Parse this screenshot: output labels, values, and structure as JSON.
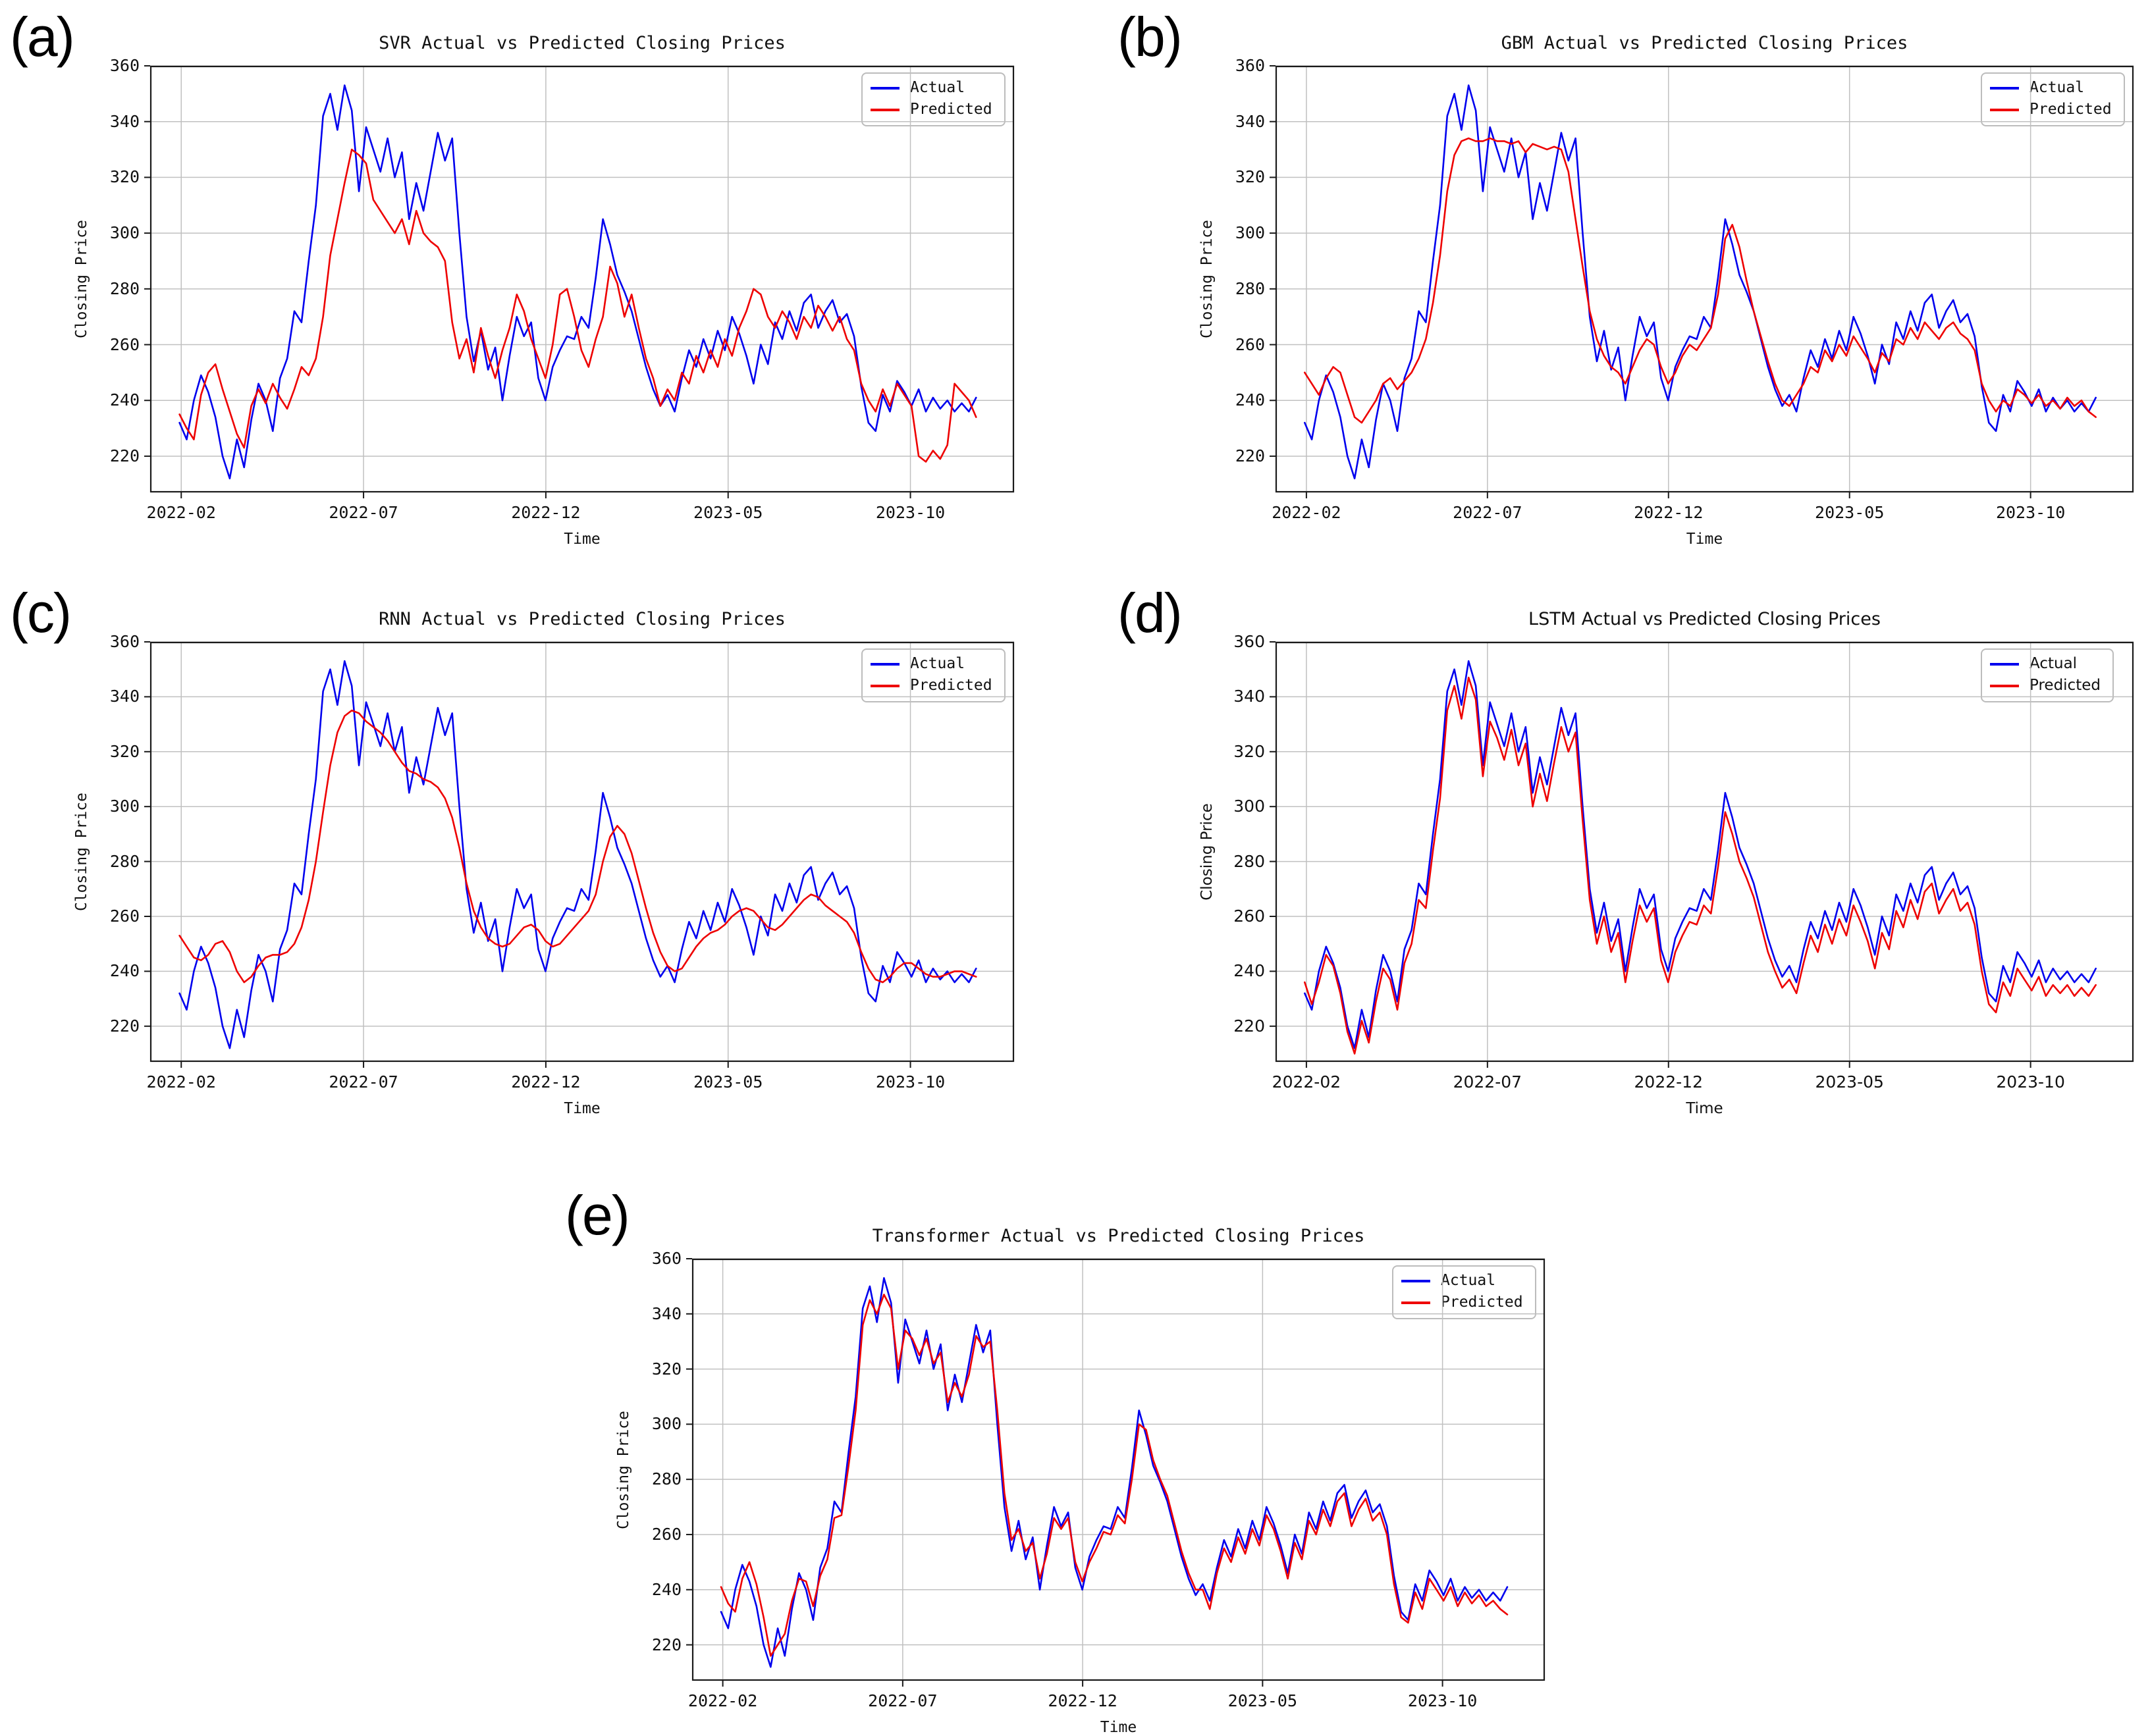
{
  "figure_note": "Actual vs Predicted closing prices for five models",
  "colors": {
    "actual": "#0000ee",
    "predicted": "#ee0000",
    "grid": "#c0c0c0",
    "spine": "#1a1a1a"
  },
  "shared_series": {
    "actual": [
      232,
      226,
      240,
      249,
      243,
      234,
      220,
      212,
      226,
      216,
      233,
      246,
      240,
      229,
      248,
      255,
      272,
      268,
      290,
      310,
      342,
      350,
      337,
      353,
      344,
      315,
      338,
      330,
      322,
      334,
      320,
      329,
      305,
      318,
      308,
      322,
      336,
      326,
      334,
      300,
      270,
      254,
      265,
      251,
      259,
      240,
      256,
      270,
      263,
      268,
      248,
      240,
      252,
      258,
      263,
      262,
      270,
      266,
      284,
      305,
      296,
      285,
      279,
      272,
      262,
      252,
      244,
      238,
      242,
      236,
      248,
      258,
      252,
      262,
      255,
      265,
      258,
      270,
      264,
      256,
      246,
      260,
      253,
      268,
      262,
      272,
      265,
      275,
      278,
      266,
      272,
      276,
      268,
      271,
      263,
      245,
      232,
      229,
      242,
      236,
      247,
      243,
      238,
      244,
      236,
      241,
      237,
      240,
      236,
      239,
      236,
      241
    ]
  },
  "chart_data": [
    {
      "id": "a",
      "panel_label": "(a)",
      "type": "line",
      "title": "SVR Actual vs Predicted Closing Prices",
      "xlabel": "Time",
      "ylabel": "Closing Price",
      "x_tick_labels": [
        "2022-02",
        "2022-07",
        "2022-12",
        "2023-05",
        "2023-10"
      ],
      "y_ticks": [
        220,
        240,
        260,
        280,
        300,
        320,
        340,
        360
      ],
      "ylim": [
        207,
        360
      ],
      "grid": true,
      "legend_position": "upper right",
      "series": [
        {
          "name": "Actual",
          "color": "#0000ee",
          "values": "@shared_series.actual"
        },
        {
          "name": "Predicted",
          "color": "#ee0000",
          "values": [
            235,
            230,
            226,
            242,
            250,
            253,
            244,
            236,
            228,
            223,
            238,
            244,
            239,
            246,
            241,
            237,
            244,
            252,
            249,
            255,
            270,
            292,
            305,
            318,
            330,
            328,
            325,
            312,
            308,
            304,
            300,
            305,
            296,
            308,
            300,
            297,
            295,
            290,
            268,
            255,
            262,
            250,
            266,
            256,
            248,
            258,
            266,
            278,
            272,
            262,
            255,
            248,
            260,
            278,
            280,
            270,
            258,
            252,
            262,
            270,
            288,
            282,
            270,
            278,
            266,
            255,
            248,
            238,
            244,
            240,
            250,
            246,
            256,
            250,
            258,
            252,
            262,
            256,
            266,
            272,
            280,
            278,
            270,
            266,
            272,
            268,
            262,
            270,
            266,
            274,
            270,
            265,
            270,
            262,
            258,
            246,
            240,
            236,
            244,
            238,
            246,
            242,
            238,
            220,
            218,
            222,
            219,
            224,
            246,
            243,
            240,
            234
          ]
        }
      ]
    },
    {
      "id": "b",
      "panel_label": "(b)",
      "type": "line",
      "title": "GBM Actual vs Predicted Closing Prices",
      "xlabel": "Time",
      "ylabel": "Closing Price",
      "x_tick_labels": [
        "2022-02",
        "2022-07",
        "2022-12",
        "2023-05",
        "2023-10"
      ],
      "y_ticks": [
        220,
        240,
        260,
        280,
        300,
        320,
        340,
        360
      ],
      "ylim": [
        207,
        360
      ],
      "grid": true,
      "legend_position": "upper right",
      "series": [
        {
          "name": "Actual",
          "color": "#0000ee",
          "values": "@shared_series.actual"
        },
        {
          "name": "Predicted",
          "color": "#ee0000",
          "values": [
            250,
            246,
            242,
            248,
            252,
            250,
            242,
            234,
            232,
            236,
            240,
            246,
            248,
            244,
            247,
            250,
            255,
            262,
            275,
            292,
            315,
            328,
            333,
            334,
            333,
            333,
            334,
            333,
            333,
            332,
            333,
            329,
            332,
            331,
            330,
            331,
            330,
            322,
            305,
            288,
            272,
            262,
            256,
            252,
            250,
            246,
            252,
            258,
            262,
            260,
            252,
            246,
            250,
            256,
            260,
            258,
            262,
            266,
            278,
            298,
            303,
            295,
            283,
            272,
            263,
            254,
            246,
            240,
            238,
            242,
            246,
            252,
            250,
            258,
            254,
            260,
            256,
            263,
            259,
            255,
            250,
            257,
            254,
            262,
            260,
            266,
            262,
            268,
            265,
            262,
            266,
            268,
            264,
            262,
            258,
            246,
            240,
            236,
            240,
            238,
            244,
            242,
            239,
            242,
            238,
            240,
            237,
            241,
            238,
            240,
            236,
            234
          ]
        }
      ]
    },
    {
      "id": "c",
      "panel_label": "(c)",
      "type": "line",
      "title": "RNN Actual vs Predicted Closing Prices",
      "xlabel": "Time",
      "ylabel": "Closing Price",
      "x_tick_labels": [
        "2022-02",
        "2022-07",
        "2022-12",
        "2023-05",
        "2023-10"
      ],
      "y_ticks": [
        220,
        240,
        260,
        280,
        300,
        320,
        340,
        360
      ],
      "ylim": [
        207,
        360
      ],
      "grid": true,
      "legend_position": "upper right",
      "series": [
        {
          "name": "Actual",
          "color": "#0000ee",
          "values": "@shared_series.actual"
        },
        {
          "name": "Predicted",
          "color": "#ee0000",
          "values": [
            253,
            249,
            245,
            244,
            246,
            250,
            251,
            247,
            240,
            236,
            238,
            242,
            245,
            246,
            246,
            247,
            250,
            256,
            266,
            280,
            298,
            315,
            327,
            333,
            335,
            334,
            331,
            329,
            327,
            324,
            320,
            316,
            313,
            312,
            310,
            309,
            307,
            303,
            296,
            285,
            272,
            262,
            256,
            252,
            250,
            249,
            250,
            253,
            256,
            257,
            255,
            251,
            249,
            250,
            253,
            256,
            259,
            262,
            268,
            280,
            289,
            293,
            290,
            283,
            273,
            263,
            254,
            247,
            242,
            240,
            241,
            245,
            249,
            252,
            254,
            255,
            257,
            260,
            262,
            263,
            262,
            259,
            256,
            255,
            257,
            260,
            263,
            266,
            268,
            267,
            264,
            262,
            260,
            258,
            254,
            247,
            241,
            237,
            236,
            238,
            241,
            243,
            243,
            241,
            239,
            238,
            238,
            239,
            240,
            240,
            239,
            238
          ]
        }
      ]
    },
    {
      "id": "d",
      "panel_label": "(d)",
      "type": "line",
      "title": "LSTM Actual vs Predicted Closing Prices",
      "xlabel": "Time",
      "ylabel": "Closing Price",
      "x_tick_labels": [
        "2022-02",
        "2022-07",
        "2022-12",
        "2023-05",
        "2023-10"
      ],
      "y_ticks": [
        220,
        240,
        260,
        280,
        300,
        320,
        340,
        360
      ],
      "ylim": [
        207,
        360
      ],
      "grid": true,
      "legend_position": "upper right",
      "series": [
        {
          "name": "Actual",
          "color": "#0000ee",
          "values": "@shared_series.actual"
        },
        {
          "name": "Predicted",
          "color": "#ee0000",
          "values": [
            236,
            228,
            236,
            246,
            242,
            232,
            218,
            210,
            222,
            214,
            229,
            241,
            237,
            226,
            243,
            250,
            266,
            263,
            284,
            303,
            335,
            344,
            332,
            347,
            339,
            311,
            331,
            325,
            317,
            328,
            315,
            323,
            300,
            312,
            302,
            316,
            329,
            320,
            327,
            295,
            266,
            250,
            260,
            247,
            254,
            236,
            251,
            264,
            258,
            263,
            244,
            236,
            247,
            253,
            258,
            257,
            264,
            261,
            278,
            298,
            290,
            280,
            274,
            267,
            257,
            247,
            240,
            234,
            237,
            232,
            243,
            253,
            247,
            257,
            250,
            259,
            253,
            264,
            258,
            251,
            241,
            254,
            248,
            262,
            256,
            266,
            259,
            269,
            272,
            261,
            266,
            270,
            262,
            265,
            257,
            240,
            228,
            225,
            236,
            231,
            241,
            237,
            233,
            238,
            231,
            235,
            232,
            235,
            231,
            234,
            231,
            235
          ]
        }
      ]
    },
    {
      "id": "e",
      "panel_label": "(e)",
      "type": "line",
      "title": "Transformer Actual vs Predicted Closing Prices",
      "xlabel": "Time",
      "ylabel": "Closing Price",
      "x_tick_labels": [
        "2022-02",
        "2022-07",
        "2022-12",
        "2023-05",
        "2023-10"
      ],
      "y_ticks": [
        220,
        240,
        260,
        280,
        300,
        320,
        340,
        360
      ],
      "ylim": [
        207,
        360
      ],
      "grid": true,
      "legend_position": "upper right",
      "series": [
        {
          "name": "Actual",
          "color": "#0000ee",
          "values": "@shared_series.actual"
        },
        {
          "name": "Predicted",
          "color": "#ee0000",
          "values": [
            241,
            235,
            232,
            244,
            250,
            242,
            230,
            216,
            220,
            224,
            236,
            244,
            243,
            234,
            245,
            251,
            266,
            267,
            285,
            305,
            336,
            345,
            340,
            347,
            342,
            320,
            334,
            331,
            325,
            331,
            322,
            326,
            308,
            315,
            310,
            318,
            332,
            328,
            330,
            305,
            275,
            258,
            262,
            254,
            257,
            244,
            253,
            266,
            262,
            266,
            250,
            243,
            250,
            255,
            261,
            260,
            267,
            264,
            280,
            300,
            298,
            287,
            280,
            274,
            264,
            254,
            246,
            240,
            240,
            233,
            246,
            255,
            250,
            259,
            253,
            262,
            256,
            267,
            262,
            254,
            244,
            257,
            251,
            265,
            260,
            269,
            263,
            272,
            275,
            263,
            269,
            273,
            265,
            268,
            260,
            242,
            230,
            228,
            239,
            233,
            244,
            240,
            236,
            241,
            234,
            239,
            235,
            238,
            234,
            236,
            233,
            231
          ]
        }
      ]
    }
  ]
}
